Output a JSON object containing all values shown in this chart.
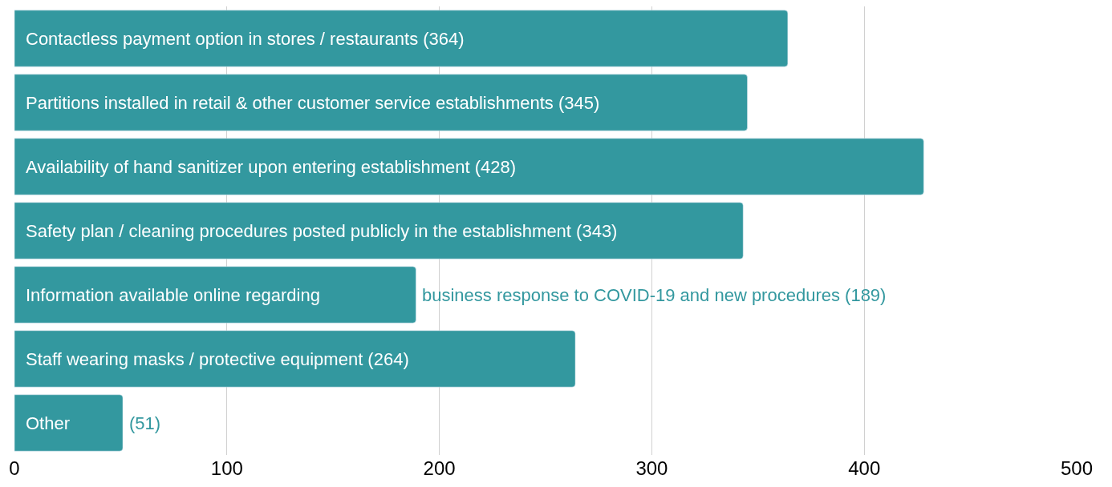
{
  "chart_data": {
    "type": "bar",
    "orientation": "horizontal",
    "categories": [
      "Contactless payment option in stores / restaurants",
      "Partitions installed in retail & other customer service establishments",
      "Availability of hand sanitizer upon entering establishment",
      "Safety plan / cleaning procedures posted publicly in the establishment",
      "Information available online regarding business response to COVID-19 and new procedures",
      "Staff wearing masks / protective equipment",
      "Other"
    ],
    "values": [
      364,
      345,
      428,
      343,
      189,
      264,
      51
    ],
    "value_labels": [
      "(364)",
      "(345)",
      "(428)",
      "(343)",
      "(189)",
      "(264)",
      "(51)"
    ],
    "color": "#33989f",
    "xlim": [
      0,
      500
    ],
    "xticks": [
      0,
      100,
      200,
      300,
      400,
      500
    ],
    "grid": "x",
    "tick_labels": "x"
  }
}
